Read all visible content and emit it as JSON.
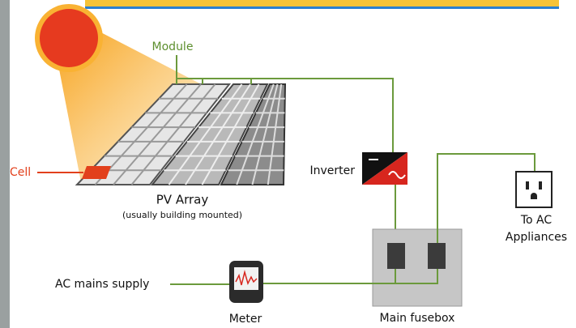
{
  "labels": {
    "module": "Module",
    "cell": "Cell",
    "pv_array": "PV Array",
    "pv_array_note": "(usually building mounted)",
    "inverter": "Inverter",
    "appliances": [
      "To AC",
      "Appliances"
    ],
    "mains": "AC mains supply",
    "meter": "Meter",
    "fusebox": "Main fusebox"
  }
}
